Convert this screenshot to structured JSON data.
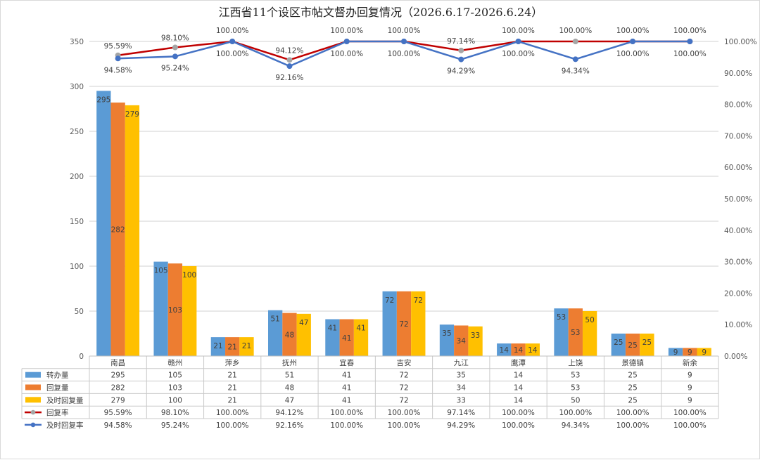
{
  "chart_data": {
    "type": "bar",
    "title": "江西省11个设区市帖文督办回复情况（2026.6.17-2026.6.24）",
    "categories": [
      "南昌",
      "赣州",
      "萍乡",
      "抚州",
      "宜春",
      "吉安",
      "九江",
      "鹰潭",
      "上饶",
      "景德镇",
      "新余"
    ],
    "series": [
      {
        "name": "转办量",
        "kind": "bar",
        "axis": "left",
        "color": "#5b9bd5",
        "values": [
          295,
          105,
          21,
          51,
          41,
          72,
          35,
          14,
          53,
          25,
          9
        ]
      },
      {
        "name": "回复量",
        "kind": "bar",
        "axis": "left",
        "color": "#ed7d31",
        "values": [
          282,
          103,
          21,
          48,
          41,
          72,
          34,
          14,
          53,
          25,
          9
        ]
      },
      {
        "name": "及时回复量",
        "kind": "bar",
        "axis": "left",
        "color": "#ffc000",
        "values": [
          279,
          100,
          21,
          47,
          41,
          72,
          33,
          14,
          50,
          25,
          9
        ]
      },
      {
        "name": "回复率",
        "kind": "line",
        "axis": "right",
        "color": "#c00000",
        "marker_color": "#a5a5a5",
        "values": [
          95.59,
          98.1,
          100.0,
          94.12,
          100.0,
          100.0,
          97.14,
          100.0,
          100.0,
          100.0,
          100.0
        ]
      },
      {
        "name": "及时回复率",
        "kind": "line",
        "axis": "right",
        "color": "#4472c4",
        "marker_color": "#4472c4",
        "values": [
          94.58,
          95.24,
          100.0,
          92.16,
          100.0,
          100.0,
          94.29,
          100.0,
          94.34,
          100.0,
          100.0
        ]
      }
    ],
    "ylim_left": [
      0,
      350
    ],
    "yticks_left": [
      0,
      50,
      100,
      150,
      200,
      250,
      300,
      350
    ],
    "ylim_right": [
      0,
      100
    ],
    "yticks_right": [
      "0.00%",
      "10.00%",
      "20.00%",
      "30.00%",
      "40.00%",
      "50.00%",
      "60.00%",
      "70.00%",
      "80.00%",
      "90.00%",
      "100.00%"
    ],
    "grid": true,
    "legend": "data-table"
  }
}
